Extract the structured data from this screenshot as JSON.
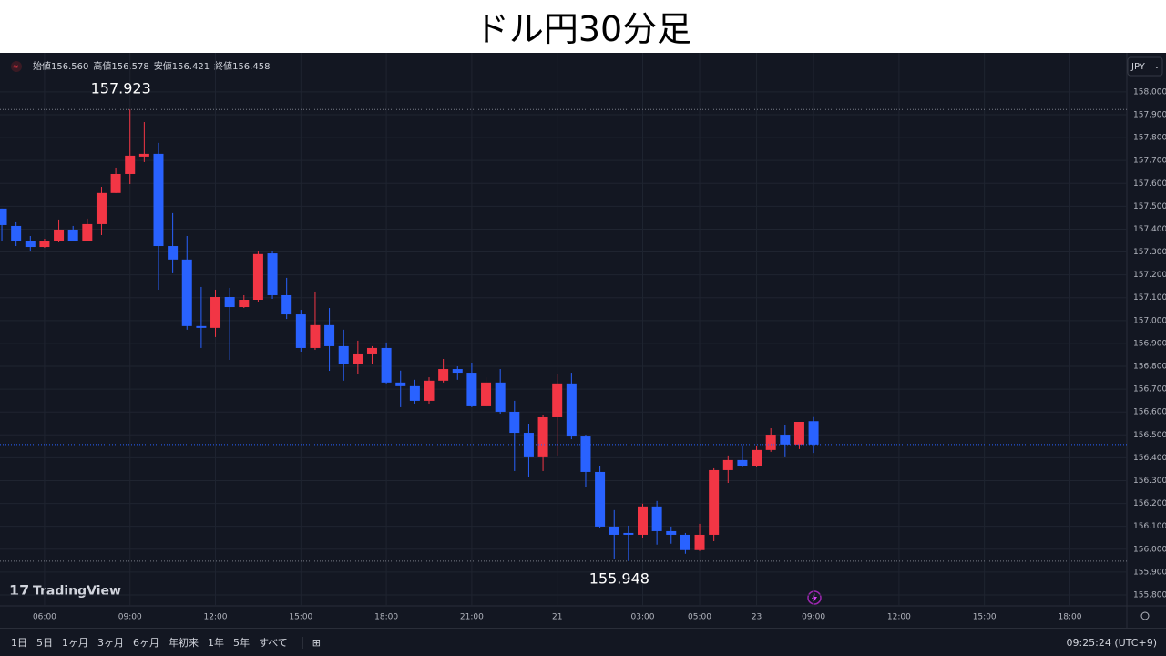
{
  "header": {
    "title": "ドル円30分足"
  },
  "toolbar": {
    "ranges": [
      "1日",
      "5日",
      "1ヶ月",
      "3ヶ月",
      "6ヶ月",
      "年初来",
      "1年",
      "5年",
      "すべて"
    ],
    "clock": "09:25:24 (UTC+9)"
  },
  "chart_data": {
    "type": "candlestick",
    "brand": "TradingView",
    "currency": "JPY",
    "ohlc_legend": [
      {
        "label": "始値",
        "value": "156.560"
      },
      {
        "label": "高値",
        "value": "156.578"
      },
      {
        "label": "安値",
        "value": "156.421"
      },
      {
        "label": "終値",
        "value": "156.458"
      }
    ],
    "up_color": "#f23645",
    "down_color": "#2962ff",
    "grid": true,
    "open": [
      157.49,
      157.414,
      157.35,
      157.322,
      157.35,
      157.398,
      157.35,
      157.422,
      157.558,
      157.641,
      157.717,
      157.729,
      157.326,
      157.267,
      156.976,
      156.968,
      157.103,
      157.059,
      157.091,
      157.294,
      157.111,
      157.027,
      156.88,
      156.98,
      156.888,
      156.81,
      156.856,
      156.88,
      156.729,
      156.713,
      156.649,
      156.737,
      156.788,
      156.772,
      156.625,
      156.729,
      156.601,
      156.509,
      156.402,
      156.577,
      156.725,
      156.493,
      156.338,
      156.099,
      156.071,
      156.063,
      156.187,
      156.079,
      156.063,
      155.996,
      156.063,
      156.346,
      156.39,
      156.362,
      156.434,
      156.501,
      156.458,
      156.56
    ],
    "high": [
      157.49,
      157.43,
      157.37,
      157.358,
      157.442,
      157.414,
      157.446,
      157.585,
      157.669,
      157.923,
      157.868,
      157.777,
      157.47,
      157.37,
      157.147,
      157.135,
      157.143,
      157.111,
      157.302,
      157.306,
      157.187,
      157.047,
      157.127,
      157.055,
      156.96,
      156.912,
      156.888,
      156.904,
      156.781,
      156.741,
      156.752,
      156.832,
      156.8,
      156.816,
      156.752,
      156.788,
      156.649,
      156.549,
      156.585,
      156.768,
      156.772,
      156.501,
      156.362,
      156.171,
      156.103,
      156.199,
      156.211,
      156.099,
      156.071,
      156.111,
      156.354,
      156.41,
      156.454,
      156.45,
      156.529,
      156.545,
      156.557,
      156.578
    ],
    "low": [
      157.346,
      157.326,
      157.302,
      157.318,
      157.342,
      157.35,
      157.346,
      157.374,
      157.558,
      157.597,
      157.693,
      157.135,
      157.207,
      156.96,
      156.88,
      156.928,
      156.828,
      157.055,
      157.079,
      157.095,
      157.007,
      156.864,
      156.872,
      156.78,
      156.737,
      156.768,
      156.808,
      156.725,
      156.621,
      156.637,
      156.637,
      156.729,
      156.741,
      156.621,
      156.621,
      156.593,
      156.342,
      156.314,
      156.342,
      156.41,
      156.481,
      156.27,
      156.091,
      155.959,
      155.948,
      156.051,
      156.02,
      156.024,
      155.98,
      155.992,
      156.035,
      156.29,
      156.358,
      156.358,
      156.426,
      156.402,
      156.438,
      156.421
    ],
    "close": [
      157.418,
      157.35,
      157.322,
      157.35,
      157.398,
      157.35,
      157.422,
      157.558,
      157.641,
      157.721,
      157.729,
      157.326,
      157.267,
      156.976,
      156.968,
      157.103,
      157.059,
      157.091,
      157.291,
      157.111,
      157.027,
      156.88,
      156.98,
      156.888,
      156.81,
      156.856,
      156.88,
      156.729,
      156.713,
      156.649,
      156.737,
      156.788,
      156.772,
      156.625,
      156.729,
      156.601,
      156.509,
      156.402,
      156.577,
      156.725,
      156.493,
      156.338,
      156.099,
      156.063,
      156.063,
      156.187,
      156.079,
      156.063,
      155.996,
      156.063,
      156.346,
      156.39,
      156.362,
      156.434,
      156.501,
      156.458,
      156.557,
      156.458
    ],
    "annotations": [
      157.923,
      155.948
    ],
    "xlim": [
      -0.13,
      79
    ],
    "xticks": [
      {
        "value": 3,
        "label": "06:00"
      },
      {
        "value": 9,
        "label": "09:00"
      },
      {
        "value": 15,
        "label": "12:00"
      },
      {
        "value": 21,
        "label": "15:00"
      },
      {
        "value": 27,
        "label": "18:00"
      },
      {
        "value": 33,
        "label": "21:00"
      },
      {
        "value": 39,
        "label": "21"
      },
      {
        "value": 45,
        "label": "03:00"
      },
      {
        "value": 49,
        "label": "05:00"
      },
      {
        "value": 53,
        "label": "23"
      },
      {
        "value": 57,
        "label": "09:00"
      },
      {
        "value": 63,
        "label": "12:00"
      },
      {
        "value": 69,
        "label": "15:00"
      },
      {
        "value": 75,
        "label": "18:00"
      }
    ],
    "ylim": [
      155.752,
      158.163
    ],
    "yticks": [
      {
        "value": 155.8,
        "label": "155.800"
      },
      {
        "value": 155.9,
        "label": "155.900"
      },
      {
        "value": 156,
        "label": "156.000"
      },
      {
        "value": 156.1,
        "label": "156.100"
      },
      {
        "value": 156.2,
        "label": "156.200"
      },
      {
        "value": 156.3,
        "label": "156.300"
      },
      {
        "value": 156.4,
        "label": "156.400"
      },
      {
        "value": 156.5,
        "label": "156.500"
      },
      {
        "value": 156.6,
        "label": "156.600"
      },
      {
        "value": 156.7,
        "label": "156.700"
      },
      {
        "value": 156.8,
        "label": "156.800"
      },
      {
        "value": 156.9,
        "label": "156.900"
      },
      {
        "value": 157,
        "label": "157.000"
      },
      {
        "value": 157.1,
        "label": "157.100"
      },
      {
        "value": 157.2,
        "label": "157.200"
      },
      {
        "value": 157.3,
        "label": "157.300"
      },
      {
        "value": 157.4,
        "label": "157.400"
      },
      {
        "value": 157.5,
        "label": "157.500"
      },
      {
        "value": 157.6,
        "label": "157.600"
      },
      {
        "value": 157.7,
        "label": "157.700"
      },
      {
        "value": 157.8,
        "label": "157.800"
      },
      {
        "value": 157.9,
        "label": "157.900"
      },
      {
        "value": 158,
        "label": "158.000"
      }
    ]
  }
}
